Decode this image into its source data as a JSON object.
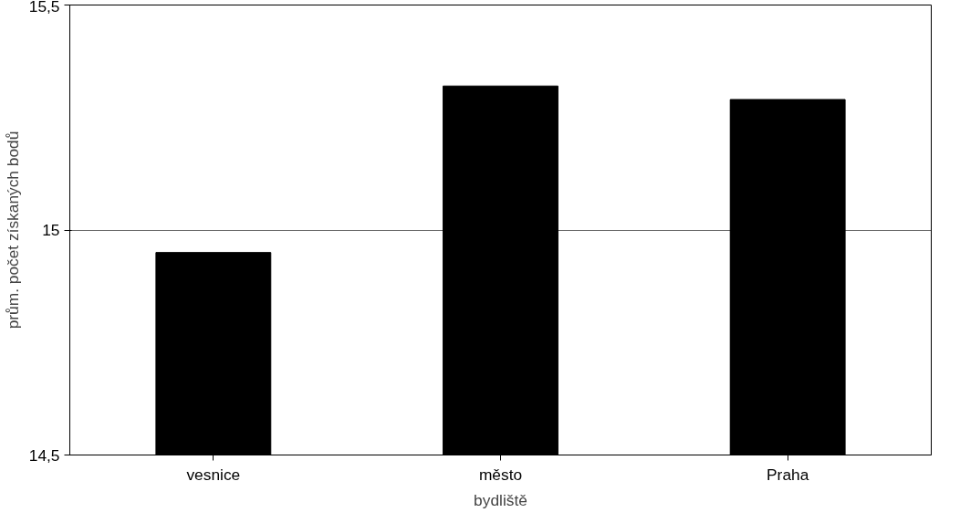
{
  "chart_data": {
    "type": "bar",
    "xlabel": "bydliště",
    "ylabel": "prům. počet získaných bodů",
    "categories": [
      "vesnice",
      "město",
      "Praha"
    ],
    "values": [
      14.95,
      15.32,
      15.29
    ],
    "color": "#000000",
    "ylim": [
      14.5,
      15.5
    ],
    "yticks": [
      {
        "value": 14.5,
        "label": "14,5"
      },
      {
        "value": 15,
        "label": "15"
      },
      {
        "value": 15.5,
        "label": "15,5"
      }
    ],
    "grid": "y"
  }
}
